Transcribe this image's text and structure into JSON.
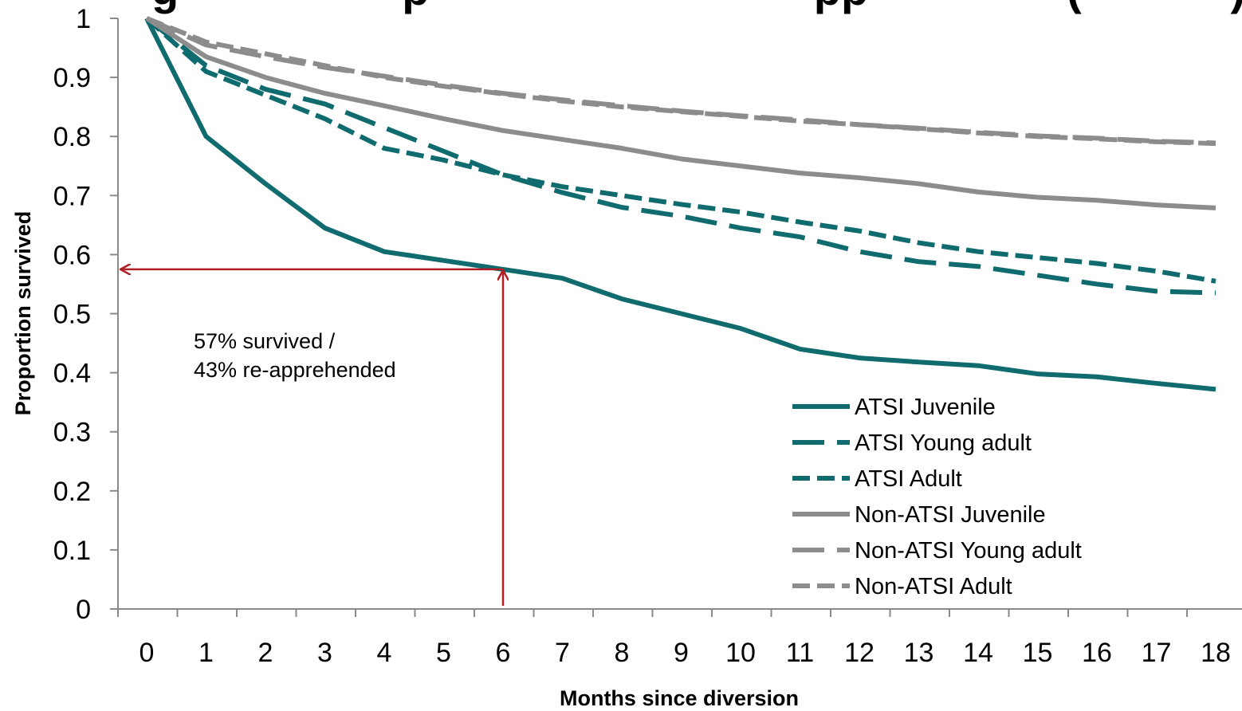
{
  "chart_data": {
    "type": "line",
    "title": "g                  p                               pp                (            )",
    "xlabel": "Months since diversion",
    "ylabel": "Proportion survived",
    "x": [
      0,
      1,
      2,
      3,
      4,
      5,
      6,
      7,
      8,
      9,
      10,
      11,
      12,
      13,
      14,
      15,
      16,
      17,
      18
    ],
    "xlim": [
      -0.5,
      18.5
    ],
    "ylim": [
      0,
      1
    ],
    "y_ticks": [
      "0",
      "0.1",
      "0.2",
      "0.3",
      "0.4",
      "0.5",
      "0.6",
      "0.7",
      "0.8",
      "0.9",
      "1"
    ],
    "x_ticks": [
      "0",
      "1",
      "2",
      "3",
      "4",
      "5",
      "6",
      "7",
      "8",
      "9",
      "10",
      "11",
      "12",
      "13",
      "14",
      "15",
      "16",
      "17",
      "18"
    ],
    "grid": false,
    "legend_position": "bottom-right",
    "series": [
      {
        "name": "ATSI Juvenile",
        "color": "#0f6b6e",
        "dash": "solid",
        "values": [
          1,
          0.8,
          0.72,
          0.645,
          0.605,
          0.59,
          0.575,
          0.56,
          0.525,
          0.5,
          0.475,
          0.44,
          0.425,
          0.418,
          0.412,
          0.398,
          0.393,
          0.382,
          0.372
        ]
      },
      {
        "name": "ATSI Young adult",
        "color": "#0f6b6e",
        "dash": "long",
        "values": [
          1,
          0.92,
          0.88,
          0.855,
          0.815,
          0.775,
          0.735,
          0.705,
          0.68,
          0.665,
          0.645,
          0.63,
          0.605,
          0.588,
          0.58,
          0.565,
          0.55,
          0.538,
          0.535
        ]
      },
      {
        "name": "ATSI Adult",
        "color": "#0f6b6e",
        "dash": "short",
        "values": [
          1,
          0.91,
          0.87,
          0.83,
          0.78,
          0.76,
          0.735,
          0.715,
          0.7,
          0.685,
          0.672,
          0.655,
          0.64,
          0.62,
          0.605,
          0.595,
          0.585,
          0.572,
          0.555
        ]
      },
      {
        "name": "Non-ATSI Juvenile",
        "color": "#8c8c8c",
        "dash": "solid",
        "values": [
          1,
          0.935,
          0.9,
          0.873,
          0.852,
          0.83,
          0.81,
          0.795,
          0.78,
          0.762,
          0.75,
          0.738,
          0.73,
          0.72,
          0.706,
          0.697,
          0.692,
          0.684,
          0.679
        ]
      },
      {
        "name": "Non-ATSI Young adult",
        "color": "#8c8c8c",
        "dash": "long",
        "values": [
          1,
          0.955,
          0.935,
          0.917,
          0.902,
          0.887,
          0.873,
          0.862,
          0.852,
          0.843,
          0.835,
          0.828,
          0.82,
          0.814,
          0.807,
          0.801,
          0.797,
          0.792,
          0.789
        ]
      },
      {
        "name": "Non-ATSI Adult",
        "color": "#8c8c8c",
        "dash": "short",
        "values": [
          1,
          0.96,
          0.94,
          0.92,
          0.9,
          0.885,
          0.872,
          0.86,
          0.85,
          0.842,
          0.834,
          0.826,
          0.82,
          0.813,
          0.806,
          0.8,
          0.796,
          0.791,
          0.788
        ]
      }
    ],
    "annotation": {
      "lines": [
        "57% survived /",
        "43% re-apprehended"
      ],
      "x": 6,
      "y": 0.575,
      "color": "#b01e24"
    }
  }
}
